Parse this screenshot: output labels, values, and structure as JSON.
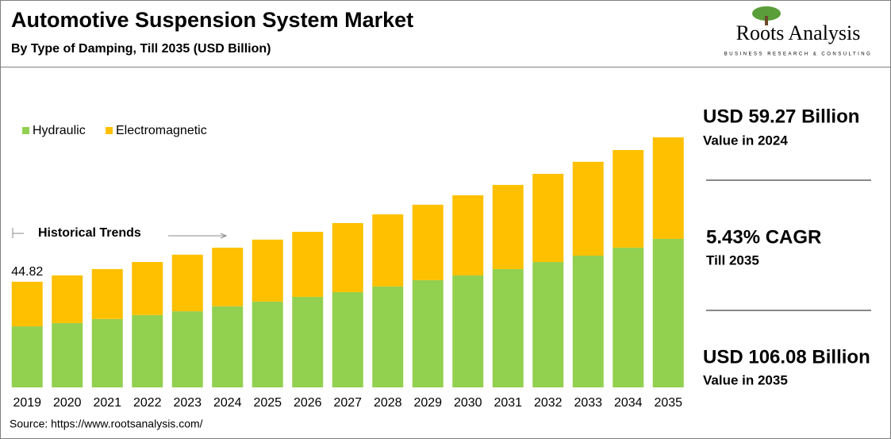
{
  "chart_data": {
    "type": "stacked_bar",
    "title": "Automotive Suspension System Market",
    "subtitle": "By Type of Damping, Till 2035 (USD Billion)",
    "categories": [
      "2019",
      "2020",
      "2021",
      "2022",
      "2023",
      "2024",
      "2025",
      "2026",
      "2027",
      "2028",
      "2029",
      "2030",
      "2031",
      "2032",
      "2033",
      "2034",
      "2035"
    ],
    "series": [
      {
        "name": "Hydraulic",
        "color": "#92d050",
        "values": [
          25.9,
          27.3,
          29.0,
          30.7,
          32.3,
          34.4,
          36.4,
          38.4,
          40.4,
          42.8,
          45.5,
          47.5,
          50.2,
          53.2,
          55.9,
          59.3,
          63.0
        ]
      },
      {
        "name": "Electromagnetic",
        "color": "#ffc000",
        "values": [
          18.92,
          20.2,
          21.2,
          22.5,
          24.0,
          24.87,
          26.3,
          27.6,
          29.3,
          30.6,
          32.0,
          34.0,
          35.7,
          37.4,
          39.8,
          41.4,
          43.08
        ]
      }
    ],
    "data_labels": [
      {
        "category": "2019",
        "value": 44.82
      }
    ],
    "annotation": "Historical Trends",
    "legend": "top-left",
    "highlights": [
      {
        "headline": "USD 59.27 Billion",
        "caption": "Value in 2024"
      },
      {
        "headline": "5.43% CAGR",
        "caption": "Till 2035"
      },
      {
        "headline": "USD 106.08 Billion",
        "caption": "Value in 2035"
      }
    ],
    "logo": {
      "name": "Roots Analysis",
      "tagline": "BUSINESS RESEARCH & CONSULTING"
    },
    "source": "Source: https://www.rootsanalysis.com/"
  }
}
